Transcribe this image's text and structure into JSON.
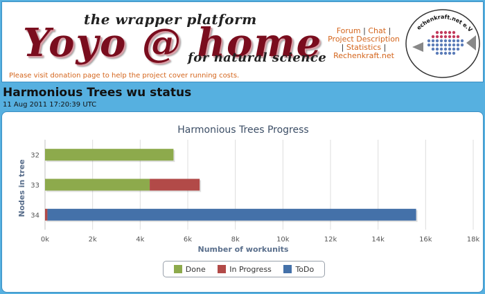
{
  "header": {
    "tagline": "the wrapper platform",
    "logo_text": "Yoyo @ home",
    "subtitle": "for natural science",
    "donation_text": "Please visit donation page to help the project cover running costs.",
    "links": [
      "Forum",
      "Chat",
      "Project Description",
      "Statistics",
      "Rechenkraft.net"
    ],
    "badge": {
      "name": "Rechenkraft.net e.V.",
      "icon": "fish-logo-icon"
    }
  },
  "status": {
    "title": "Harmonious Trees wu status",
    "timestamp": "11 Aug 2011 17:20:39 UTC"
  },
  "colors": {
    "done": "#8daa4c",
    "in_progress": "#b24a48",
    "todo": "#4471a9",
    "page_background": "#56b0e0"
  },
  "chart_data": {
    "type": "bar",
    "orientation": "horizontal",
    "stacked": true,
    "title": "Harmonious Trees Progress",
    "xlabel": "Number of workunits",
    "ylabel": "Nodes in tree",
    "categories": [
      "32",
      "33",
      "34"
    ],
    "series": [
      {
        "name": "Done",
        "values": [
          5400,
          4400,
          0
        ],
        "color": "#8daa4c"
      },
      {
        "name": "In Progress",
        "values": [
          0,
          2100,
          100
        ],
        "color": "#b24a48"
      },
      {
        "name": "ToDo",
        "values": [
          0,
          0,
          15500
        ],
        "color": "#4471a9"
      }
    ],
    "xlim": [
      0,
      18000
    ],
    "xticks": [
      "0k",
      "2k",
      "4k",
      "6k",
      "8k",
      "10k",
      "12k",
      "14k",
      "16k",
      "18k"
    ],
    "grid": true,
    "legend_position": "bottom-center"
  }
}
